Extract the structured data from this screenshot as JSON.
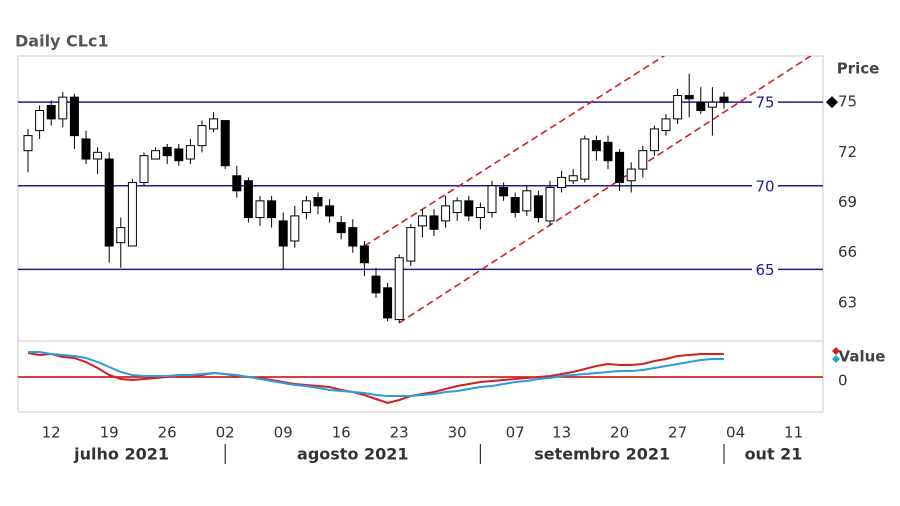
{
  "chart_data": [
    {
      "type": "candlestick",
      "title": "Daily CLc1",
      "ylabel": "Price",
      "x": [
        "2021-07-08",
        "2021-07-09",
        "2021-07-12",
        "2021-07-13",
        "2021-07-14",
        "2021-07-15",
        "2021-07-16",
        "2021-07-19",
        "2021-07-20",
        "2021-07-21",
        "2021-07-22",
        "2021-07-23",
        "2021-07-26",
        "2021-07-27",
        "2021-07-28",
        "2021-07-29",
        "2021-07-30",
        "2021-08-02",
        "2021-08-03",
        "2021-08-04",
        "2021-08-05",
        "2021-08-06",
        "2021-08-09",
        "2021-08-10",
        "2021-08-11",
        "2021-08-12",
        "2021-08-13",
        "2021-08-16",
        "2021-08-17",
        "2021-08-18",
        "2021-08-19",
        "2021-08-20",
        "2021-08-23",
        "2021-08-24",
        "2021-08-25",
        "2021-08-26",
        "2021-08-27",
        "2021-08-30",
        "2021-08-31",
        "2021-09-01",
        "2021-09-02",
        "2021-09-03",
        "2021-09-07",
        "2021-09-08",
        "2021-09-09",
        "2021-09-10",
        "2021-09-13",
        "2021-09-14",
        "2021-09-15",
        "2021-09-16",
        "2021-09-17",
        "2021-09-20",
        "2021-09-21",
        "2021-09-22",
        "2021-09-23",
        "2021-09-24",
        "2021-09-27",
        "2021-09-28",
        "2021-09-29",
        "2021-09-30",
        "2021-10-01"
      ],
      "open": [
        72.1,
        73.3,
        74.8,
        74.0,
        75.3,
        72.8,
        71.6,
        71.6,
        66.6,
        66.4,
        70.2,
        71.6,
        72.3,
        72.2,
        71.6,
        72.4,
        73.4,
        73.9,
        70.6,
        70.3,
        68.1,
        69.1,
        67.9,
        66.7,
        68.4,
        69.3,
        68.8,
        67.8,
        67.5,
        66.4,
        64.6,
        63.9,
        62.0,
        65.5,
        67.6,
        68.2,
        67.9,
        68.4,
        69.1,
        68.1,
        68.4,
        69.9,
        69.3,
        68.5,
        69.4,
        67.9,
        69.9,
        70.3,
        70.4,
        72.7,
        72.6,
        72.0,
        70.3,
        71.0,
        72.1,
        73.3,
        74.0,
        75.4,
        75.0,
        74.7,
        75.3
      ],
      "high": [
        73.4,
        74.8,
        75.1,
        75.6,
        75.5,
        73.3,
        72.3,
        72.0,
        68.1,
        70.4,
        72.0,
        72.3,
        72.5,
        72.5,
        72.8,
        73.9,
        74.4,
        73.9,
        71.2,
        70.5,
        69.4,
        69.4,
        68.4,
        68.8,
        69.4,
        69.6,
        69.2,
        68.2,
        68.0,
        66.7,
        65.1,
        64.2,
        65.9,
        67.7,
        68.6,
        68.6,
        69.4,
        69.3,
        69.4,
        69.0,
        70.3,
        70.2,
        69.6,
        70.0,
        69.7,
        70.3,
        70.9,
        71.0,
        73.0,
        73.0,
        73.0,
        72.2,
        71.4,
        72.4,
        73.6,
        74.3,
        75.8,
        76.7,
        75.9,
        75.9,
        75.6
      ],
      "low": [
        70.8,
        72.8,
        73.6,
        73.5,
        72.2,
        71.3,
        70.7,
        65.4,
        65.1,
        66.4,
        70.0,
        71.6,
        71.3,
        71.2,
        71.3,
        72.0,
        73.2,
        71.0,
        69.3,
        67.8,
        67.6,
        67.5,
        65.0,
        66.3,
        68.0,
        68.3,
        67.8,
        66.8,
        66.0,
        64.6,
        63.3,
        61.9,
        61.8,
        65.2,
        66.9,
        67.0,
        67.5,
        67.9,
        67.9,
        67.4,
        68.1,
        69.1,
        68.1,
        68.2,
        67.8,
        67.6,
        69.6,
        70.1,
        70.2,
        71.5,
        71.0,
        69.7,
        69.6,
        70.5,
        71.8,
        73.0,
        73.7,
        74.1,
        74.3,
        73.0,
        74.6
      ],
      "close": [
        73.0,
        74.5,
        74.0,
        75.3,
        73.0,
        71.6,
        72.0,
        66.4,
        67.5,
        70.2,
        71.8,
        72.1,
        71.8,
        71.5,
        72.4,
        73.6,
        74.0,
        71.2,
        69.7,
        68.1,
        69.1,
        68.1,
        66.4,
        68.2,
        69.1,
        68.8,
        68.2,
        67.2,
        66.4,
        65.4,
        63.6,
        62.1,
        65.7,
        67.5,
        68.2,
        67.4,
        68.8,
        69.1,
        68.2,
        68.7,
        70.0,
        69.4,
        68.4,
        69.7,
        68.1,
        69.9,
        70.5,
        70.6,
        72.8,
        72.1,
        71.5,
        70.2,
        71.0,
        72.1,
        73.4,
        74.0,
        75.4,
        75.2,
        74.5,
        75.0,
        75.0
      ],
      "ylim": [
        60.9,
        77.7
      ],
      "yticks": [
        63,
        66,
        69,
        72,
        75
      ],
      "hlines": [
        75,
        70,
        65
      ],
      "hline_color": "#1c1c96",
      "trendlines": [
        {
          "from": [
            "2021-08-18",
            66.4
          ],
          "to": [
            "2021-09-23",
            77.4
          ]
        },
        {
          "from": [
            "2021-08-23",
            61.8
          ],
          "to": [
            "2021-10-01",
            74.4
          ]
        }
      ],
      "trendline_color": "#d42020",
      "xticks": [
        {
          "value": "2021-07-12",
          "label": "12"
        },
        {
          "value": "2021-07-19",
          "label": "19"
        },
        {
          "value": "2021-07-26",
          "label": "26"
        },
        {
          "value": "2021-08-02",
          "label": "02"
        },
        {
          "value": "2021-08-09",
          "label": "09"
        },
        {
          "value": "2021-08-16",
          "label": "16"
        },
        {
          "value": "2021-08-23",
          "label": "23"
        },
        {
          "value": "2021-08-30",
          "label": "30"
        },
        {
          "value": "2021-09-07",
          "label": "07"
        },
        {
          "value": "2021-09-13",
          "label": "13"
        },
        {
          "value": "2021-09-20",
          "label": "20"
        },
        {
          "value": "2021-09-27",
          "label": "27"
        },
        {
          "value": "2021-10-04",
          "label": "04"
        },
        {
          "value": "2021-10-11",
          "label": "11"
        }
      ],
      "x_groups": [
        "julho 2021",
        "agosto 2021",
        "setembro 2021",
        "out 21"
      ]
    },
    {
      "type": "line",
      "ylabel": "Value",
      "ylim": [
        -1.4,
        1.28
      ],
      "yticks": [
        0
      ],
      "zero_line_color": "#cc0000",
      "series": [
        {
          "color": "#d42020",
          "values": [
            0.96,
            0.88,
            0.92,
            0.8,
            0.76,
            0.6,
            0.36,
            0.08,
            -0.08,
            -0.12,
            -0.08,
            -0.04,
            0,
            0.04,
            0.04,
            0.08,
            0.16,
            0.12,
            0.04,
            0,
            -0.04,
            -0.12,
            -0.2,
            -0.28,
            -0.32,
            -0.36,
            -0.4,
            -0.52,
            -0.6,
            -0.72,
            -0.88,
            -1.04,
            -0.92,
            -0.76,
            -0.68,
            -0.6,
            -0.48,
            -0.36,
            -0.28,
            -0.2,
            -0.16,
            -0.12,
            -0.08,
            -0.04,
            0,
            0.04,
            0.12,
            0.2,
            0.32,
            0.44,
            0.52,
            0.48,
            0.48,
            0.52,
            0.64,
            0.72,
            0.84,
            0.88,
            0.92,
            0.92,
            0.92
          ]
        },
        {
          "color": "#2a9de0",
          "values": [
            1.0,
            1.0,
            0.92,
            0.88,
            0.84,
            0.76,
            0.6,
            0.4,
            0.2,
            0.08,
            0.04,
            0.04,
            0.04,
            0.08,
            0.08,
            0.12,
            0.16,
            0.12,
            0.08,
            0,
            -0.08,
            -0.16,
            -0.24,
            -0.32,
            -0.36,
            -0.44,
            -0.52,
            -0.56,
            -0.6,
            -0.64,
            -0.72,
            -0.76,
            -0.76,
            -0.76,
            -0.72,
            -0.68,
            -0.6,
            -0.56,
            -0.48,
            -0.4,
            -0.36,
            -0.28,
            -0.2,
            -0.16,
            -0.08,
            -0.04,
            0.04,
            0.08,
            0.12,
            0.16,
            0.2,
            0.24,
            0.24,
            0.28,
            0.36,
            0.44,
            0.52,
            0.6,
            0.68,
            0.72,
            0.72
          ]
        }
      ]
    }
  ]
}
